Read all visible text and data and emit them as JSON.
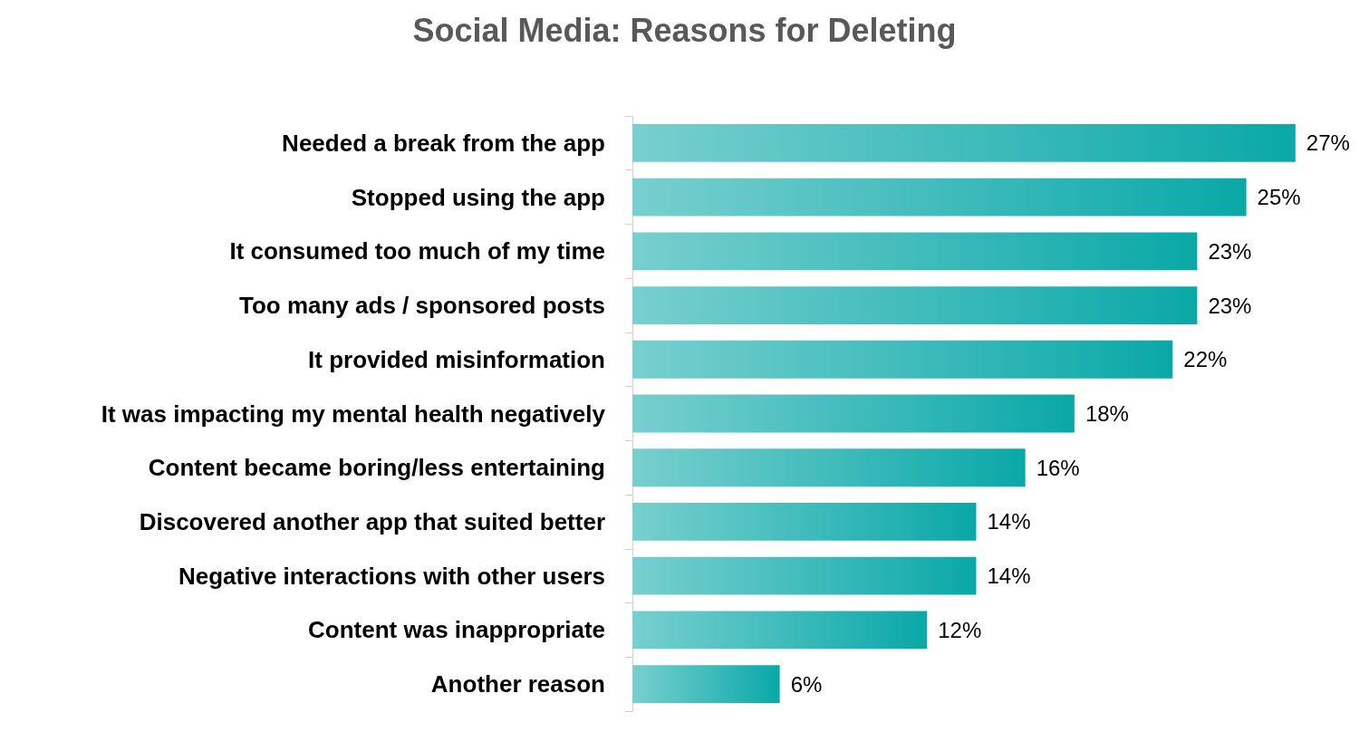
{
  "chart_data": {
    "type": "bar",
    "orientation": "horizontal",
    "title": "Social Media: Reasons for Deleting",
    "categories": [
      "Needed a break from the app",
      "Stopped using the app",
      "It consumed too much of my time",
      "Too many ads / sponsored posts",
      "It provided misinformation",
      "It was impacting my mental health negatively",
      "Content became boring/less entertaining",
      "Discovered another app that suited better",
      "Negative interactions with other users",
      "Content was inappropriate",
      "Another reason"
    ],
    "values": [
      27,
      25,
      23,
      23,
      22,
      18,
      16,
      14,
      14,
      12,
      6
    ],
    "value_labels": [
      "27%",
      "25%",
      "23%",
      "23%",
      "22%",
      "18%",
      "16%",
      "14%",
      "14%",
      "12%",
      "6%"
    ],
    "color": "#0aa8a8",
    "grid": false,
    "tick_labels": "y"
  }
}
